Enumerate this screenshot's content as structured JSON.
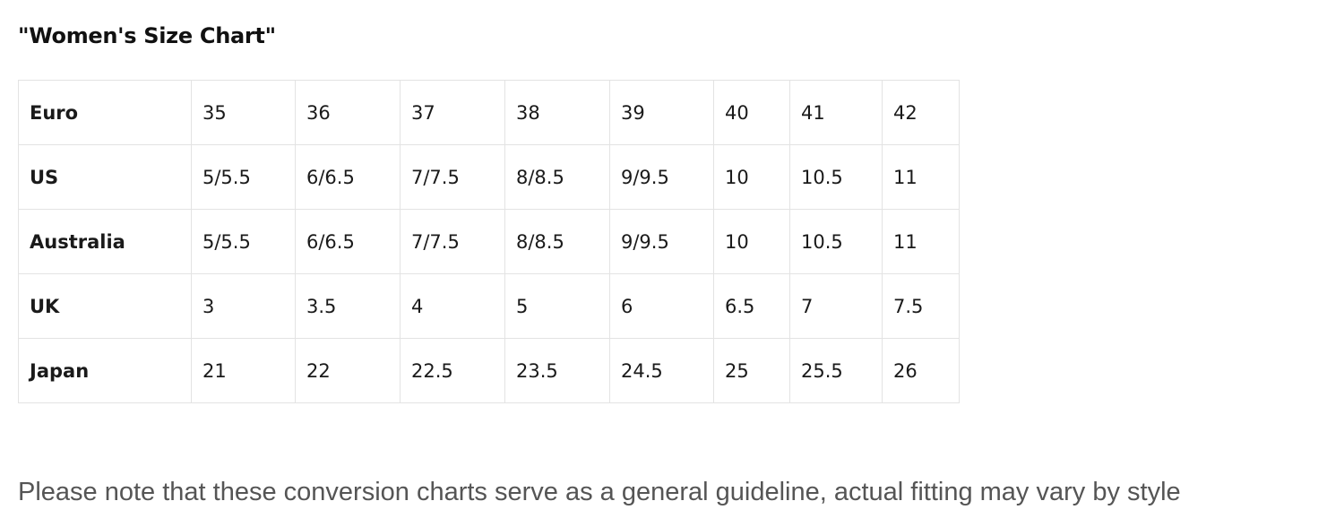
{
  "title": "\"Women's Size Chart\"",
  "table": {
    "rows": [
      {
        "label": "Euro",
        "values": [
          "35",
          "36",
          "37",
          "38",
          "39",
          "40",
          "41",
          "42"
        ]
      },
      {
        "label": "US",
        "values": [
          "5/5.5",
          "6/6.5",
          "7/7.5",
          "8/8.5",
          "9/9.5",
          "10",
          "10.5",
          "11"
        ]
      },
      {
        "label": "Australia",
        "values": [
          "5/5.5",
          "6/6.5",
          "7/7.5",
          "8/8.5",
          "9/9.5",
          "10",
          "10.5",
          "11"
        ]
      },
      {
        "label": "UK",
        "values": [
          "3",
          "3.5",
          "4",
          "5",
          "6",
          "6.5",
          "7",
          "7.5"
        ]
      },
      {
        "label": "Japan",
        "values": [
          "21",
          "22",
          "22.5",
          "23.5",
          "24.5",
          "25",
          "25.5",
          "26"
        ]
      }
    ]
  },
  "note": "Please note that these conversion charts serve as a general guideline, actual fitting may vary by style"
}
